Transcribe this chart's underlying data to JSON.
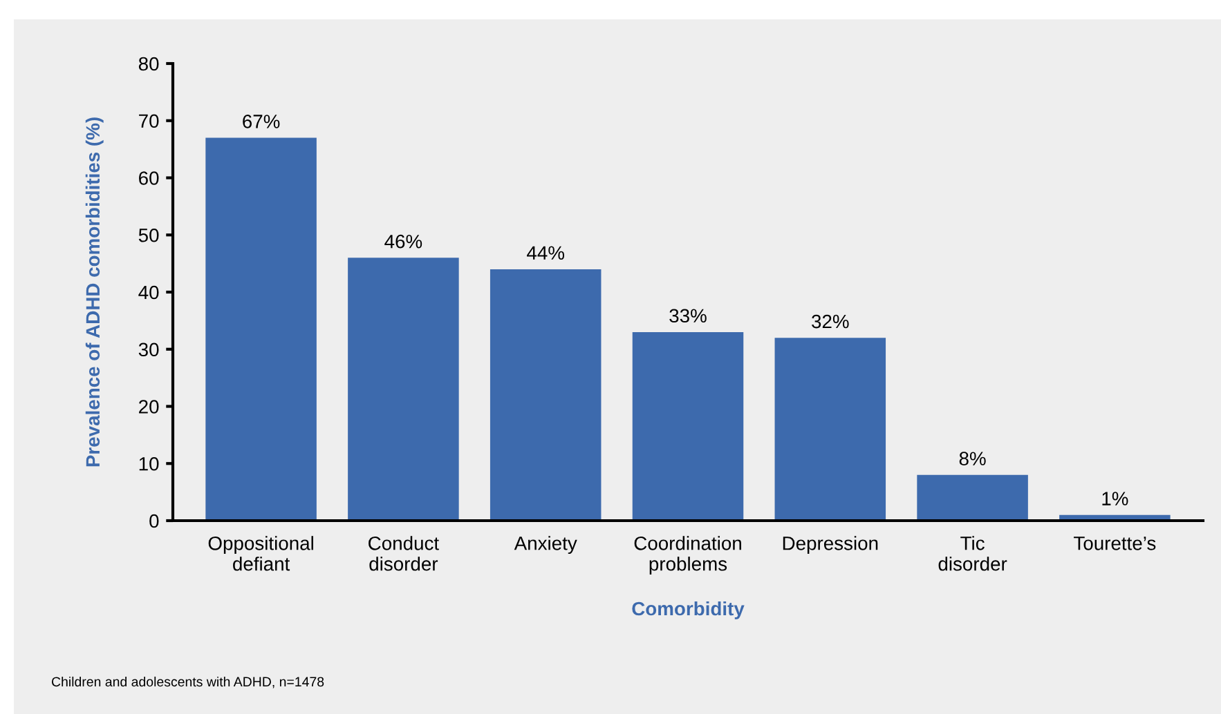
{
  "chart_data": {
    "type": "bar",
    "xlabel": "Comorbidity",
    "ylabel": "Prevalence of ADHD comorbidities (%)",
    "categories": [
      "Oppositional\ndefiant",
      "Conduct\ndisorder",
      "Anxiety",
      "Coordination\nproblems",
      "Depression",
      "Tic\ndisorder",
      "Tourette’s"
    ],
    "values": [
      67,
      46,
      44,
      33,
      32,
      8,
      1
    ],
    "value_labels": [
      "67%",
      "46%",
      "44%",
      "33%",
      "32%",
      "8%",
      "1%"
    ],
    "color": "#3d6aad",
    "ylim": [
      0,
      80
    ],
    "yticks": [
      0,
      10,
      20,
      30,
      40,
      50,
      60,
      70,
      80
    ],
    "grid": false,
    "annotations": [
      "Children and adolescents with ADHD, n=1478"
    ]
  }
}
